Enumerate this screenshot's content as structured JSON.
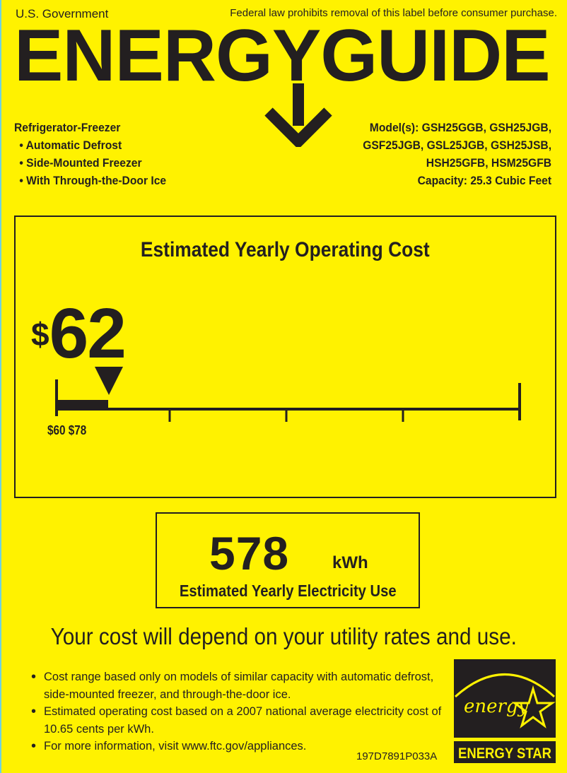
{
  "header": {
    "gov": "U.S. Government",
    "law": "Federal law prohibits removal of this label before consumer purchase.",
    "title": "ENERGYGUIDE"
  },
  "product": {
    "type": "Refrigerator-Freezer",
    "features": [
      "• Automatic Defrost",
      "• Side-Mounted Freezer",
      "• With Through-the-Door Ice"
    ]
  },
  "models": {
    "lines": [
      "Model(s): GSH25GGB, GSH25JGB,",
      "GSF25JGB, GSL25JGB, GSH25JSB,",
      "HSH25GFB, HSM25GFB"
    ],
    "capacity": "Capacity: 25.3 Cubic Feet"
  },
  "cost": {
    "title": "Estimated Yearly Operating Cost",
    "currency": "$",
    "value": "62",
    "range_label": "$60 $78",
    "range_min": 60,
    "range_max": 78,
    "marker_value": 62
  },
  "electricity": {
    "value": "578",
    "unit": "kWh",
    "label": "Estimated Yearly Electricity Use"
  },
  "depend": "Your cost will depend on your utility rates and use.",
  "notes": [
    "Cost range based only on models of similar capacity with automatic defrost, side-mounted freezer, and through-the-door ice.",
    "Estimated operating cost based on a 2007 national average electricity cost of 10.65 cents per kWh.",
    "For more information, visit www.ftc.gov/appliances."
  ],
  "code": "197D7891P033A",
  "energy_star": {
    "script": "energy",
    "label": "ENERGY STAR"
  },
  "colors": {
    "background": "#fff200",
    "ink": "#231f20"
  }
}
